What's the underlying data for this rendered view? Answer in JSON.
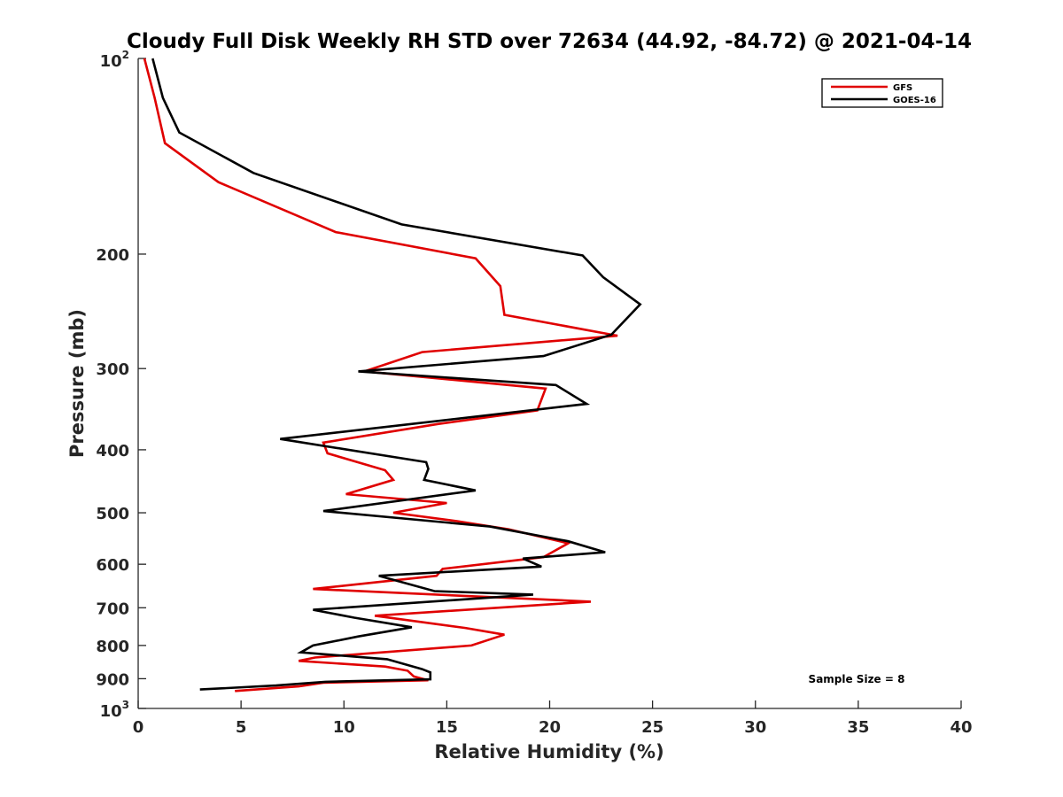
{
  "chart_data": {
    "type": "line",
    "title": "Cloudy Full Disk Weekly RH STD over 72634 (44.92, -84.72) @ 2021-04-14",
    "xlabel": "Relative Humidity (%)",
    "ylabel": "Pressure (mb)",
    "xlim": [
      0,
      40
    ],
    "ylim": [
      100,
      1000
    ],
    "y_scale": "log",
    "y_reversed": true,
    "x_ticks": [
      0,
      5,
      10,
      15,
      20,
      25,
      30,
      35,
      40
    ],
    "x_tick_labels": [
      "0",
      "5",
      "10",
      "15",
      "20",
      "25",
      "30",
      "35",
      "40"
    ],
    "y_ticks": [
      {
        "value": 100,
        "base": "10",
        "exp": "2"
      },
      {
        "value": 200,
        "label": "200"
      },
      {
        "value": 300,
        "label": "300"
      },
      {
        "value": 400,
        "label": "400"
      },
      {
        "value": 500,
        "label": "500"
      },
      {
        "value": 600,
        "label": "600"
      },
      {
        "value": 700,
        "label": "700"
      },
      {
        "value": 800,
        "label": "800"
      },
      {
        "value": 900,
        "label": "900"
      },
      {
        "value": 1000,
        "base": "10",
        "exp": "3"
      }
    ],
    "grid": false,
    "legend_position": "top-right",
    "annotation": "Sample Size = 8",
    "series": [
      {
        "name": "GFS",
        "color": "#e00000",
        "points": [
          [
            0.3,
            100
          ],
          [
            0.8,
            115
          ],
          [
            1.3,
            135
          ],
          [
            3.9,
            155
          ],
          [
            9.6,
            185
          ],
          [
            16.4,
            203
          ],
          [
            17.6,
            224
          ],
          [
            17.8,
            248
          ],
          [
            23.3,
            267
          ],
          [
            13.8,
            283
          ],
          [
            11.0,
            303
          ],
          [
            19.8,
            322
          ],
          [
            19.4,
            348
          ],
          [
            14.6,
            365
          ],
          [
            9.0,
            390
          ],
          [
            9.2,
            405
          ],
          [
            12.0,
            430
          ],
          [
            12.4,
            445
          ],
          [
            10.1,
            468
          ],
          [
            15.0,
            483
          ],
          [
            12.4,
            500
          ],
          [
            15.5,
            515
          ],
          [
            18.0,
            530
          ],
          [
            20.9,
            557
          ],
          [
            19.7,
            585
          ],
          [
            14.8,
            610
          ],
          [
            14.5,
            625
          ],
          [
            8.5,
            655
          ],
          [
            22.0,
            685
          ],
          [
            11.5,
            720
          ],
          [
            15.9,
            752
          ],
          [
            17.8,
            770
          ],
          [
            16.2,
            800
          ],
          [
            8.6,
            835
          ],
          [
            7.8,
            845
          ],
          [
            12.0,
            862
          ],
          [
            13.1,
            875
          ],
          [
            13.4,
            893
          ],
          [
            14.1,
            905
          ],
          [
            9.0,
            913
          ],
          [
            7.8,
            925
          ],
          [
            4.7,
            940
          ]
        ]
      },
      {
        "name": "GOES-16",
        "color": "#000000",
        "points": [
          [
            0.7,
            100
          ],
          [
            1.2,
            115
          ],
          [
            2.0,
            130
          ],
          [
            5.6,
            150
          ],
          [
            12.8,
            180
          ],
          [
            21.6,
            201
          ],
          [
            22.6,
            217
          ],
          [
            24.4,
            239
          ],
          [
            23.0,
            266
          ],
          [
            19.7,
            287
          ],
          [
            10.7,
            303
          ],
          [
            20.3,
            318
          ],
          [
            21.8,
            340
          ],
          [
            6.9,
            385
          ],
          [
            14.0,
            418
          ],
          [
            14.1,
            428
          ],
          [
            13.9,
            445
          ],
          [
            16.4,
            462
          ],
          [
            9.0,
            497
          ],
          [
            17.1,
            525
          ],
          [
            20.9,
            553
          ],
          [
            22.7,
            575
          ],
          [
            18.7,
            588
          ],
          [
            19.6,
            605
          ],
          [
            11.7,
            625
          ],
          [
            14.4,
            660
          ],
          [
            19.2,
            668
          ],
          [
            8.5,
            705
          ],
          [
            10.5,
            725
          ],
          [
            13.3,
            750
          ],
          [
            10.7,
            775
          ],
          [
            8.5,
            800
          ],
          [
            7.9,
            820
          ],
          [
            12.1,
            840
          ],
          [
            13.8,
            870
          ],
          [
            14.2,
            880
          ],
          [
            14.2,
            902
          ],
          [
            9.1,
            910
          ],
          [
            6.7,
            922
          ],
          [
            3.0,
            935
          ]
        ]
      }
    ]
  }
}
